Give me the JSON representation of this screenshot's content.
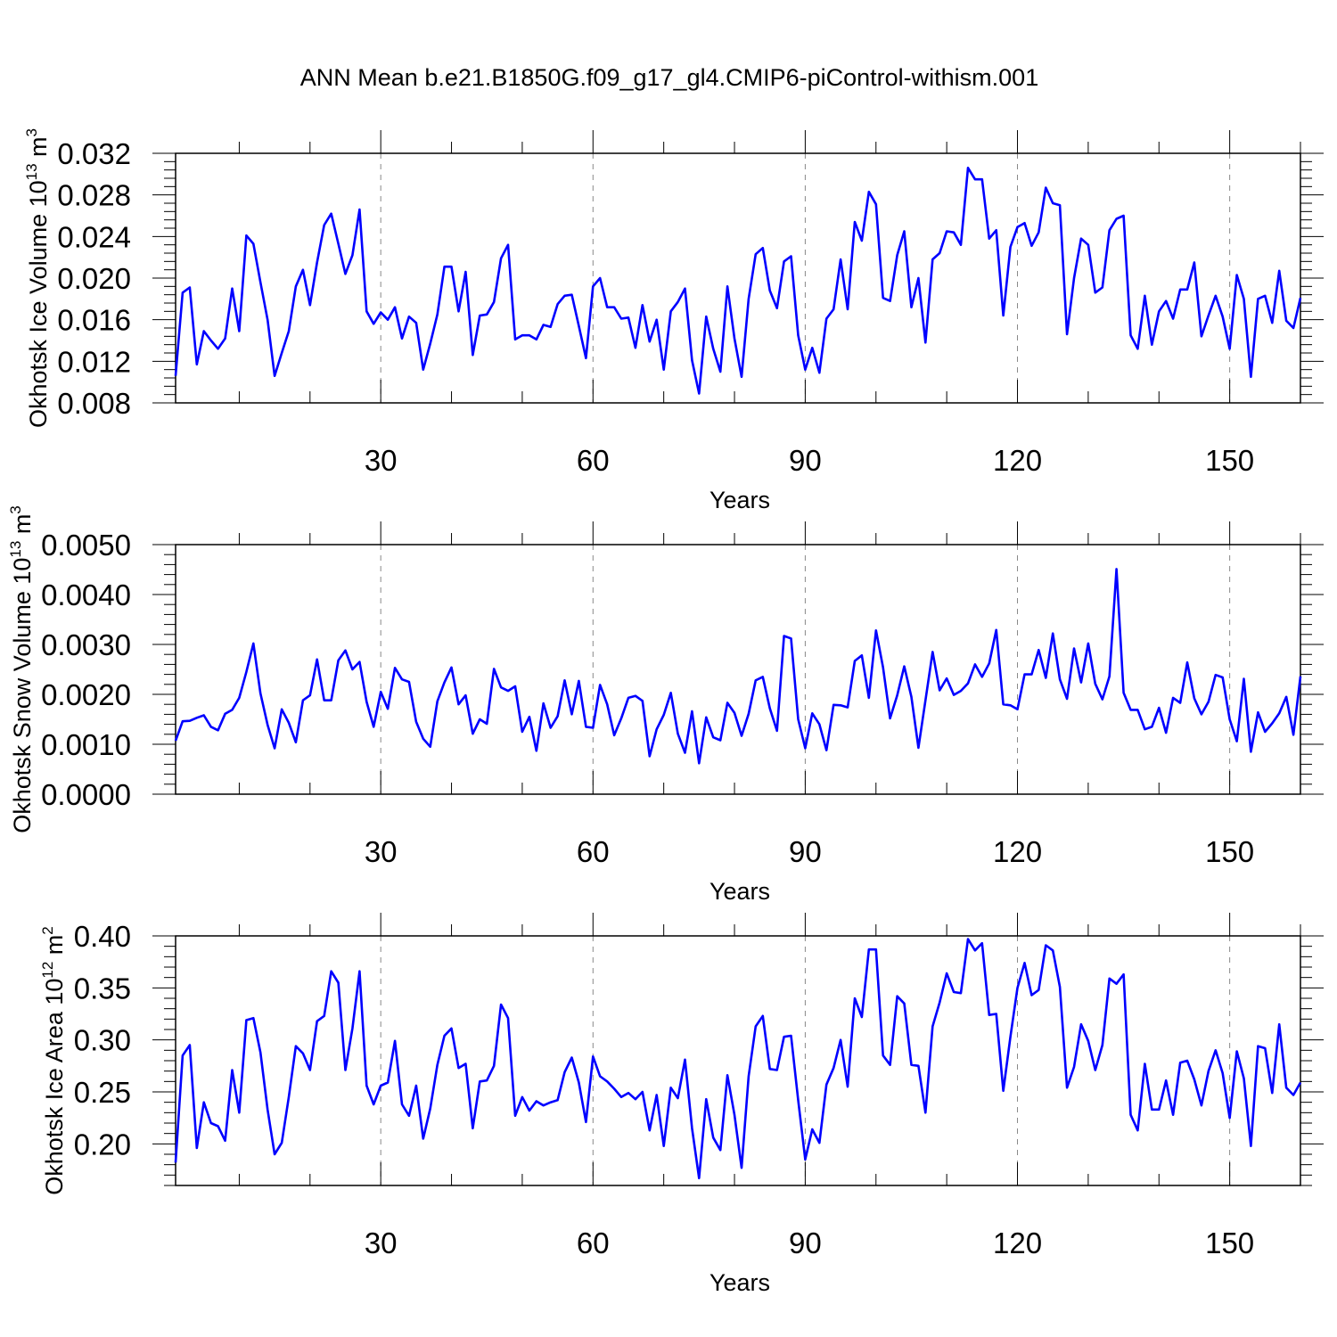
{
  "title": "ANN Mean b.e21.B1850G.f09_g17_gl4.CMIP6-piControl-withism.001",
  "colors": {
    "line": "#0000ff",
    "axis": "#000000",
    "grid": "#888888"
  },
  "chart_data": [
    {
      "type": "line",
      "name": "ice-volume",
      "ylabel_main": "Okhotsk Ice Volume 10",
      "ylabel_exp": "13",
      "ylabel_unit": " m",
      "ylabel_unit_exp": "3",
      "xlabel": "Years",
      "xlim": [
        1,
        160
      ],
      "xticks": [
        30,
        60,
        90,
        120,
        150
      ],
      "xtick_labels": [
        "30",
        "60",
        "90",
        "120",
        "150"
      ],
      "ylim": [
        0.008,
        0.032
      ],
      "yticks": [
        0.008,
        0.012,
        0.016,
        0.02,
        0.024,
        0.028,
        0.032
      ],
      "ytick_labels": [
        "0.008",
        "0.012",
        "0.016",
        "0.020",
        "0.024",
        "0.028",
        "0.032"
      ],
      "grid": "vertical dashed at major x ticks",
      "series": [
        {
          "name": "Okhotsk Ice Volume",
          "values": [
            0.0106,
            0.0186,
            0.0191,
            0.0117,
            0.0149,
            0.014,
            0.0132,
            0.0142,
            0.019,
            0.0149,
            0.0241,
            0.0233,
            0.0196,
            0.016,
            0.0106,
            0.0128,
            0.0149,
            0.0192,
            0.0208,
            0.0174,
            0.0215,
            0.0251,
            0.0262,
            0.0233,
            0.0204,
            0.0222,
            0.0266,
            0.0168,
            0.0156,
            0.0167,
            0.016,
            0.0172,
            0.0142,
            0.0163,
            0.0157,
            0.0112,
            0.0137,
            0.0165,
            0.0211,
            0.0211,
            0.0168,
            0.0206,
            0.0126,
            0.0164,
            0.0165,
            0.0177,
            0.0219,
            0.0232,
            0.0141,
            0.0145,
            0.0145,
            0.0141,
            0.0155,
            0.0153,
            0.0175,
            0.0183,
            0.0184,
            0.0154,
            0.0123,
            0.0192,
            0.02,
            0.0172,
            0.0172,
            0.0161,
            0.0162,
            0.0133,
            0.0174,
            0.0139,
            0.016,
            0.0112,
            0.0168,
            0.0177,
            0.019,
            0.0121,
            0.0089,
            0.0163,
            0.0132,
            0.011,
            0.0192,
            0.0142,
            0.0105,
            0.018,
            0.0223,
            0.0229,
            0.0188,
            0.0171,
            0.0216,
            0.0221,
            0.0145,
            0.0112,
            0.0133,
            0.0109,
            0.0161,
            0.017,
            0.0218,
            0.017,
            0.0254,
            0.0236,
            0.0283,
            0.0271,
            0.0181,
            0.0178,
            0.0222,
            0.0245,
            0.0172,
            0.02,
            0.0138,
            0.0218,
            0.0224,
            0.0245,
            0.0244,
            0.0232,
            0.0306,
            0.0295,
            0.0295,
            0.0238,
            0.0246,
            0.0164,
            0.023,
            0.0249,
            0.0253,
            0.0231,
            0.0244,
            0.0287,
            0.0272,
            0.027,
            0.0146,
            0.02,
            0.0238,
            0.0232,
            0.0186,
            0.0191,
            0.0246,
            0.0257,
            0.026,
            0.0145,
            0.0132,
            0.0183,
            0.0136,
            0.0168,
            0.0178,
            0.0161,
            0.0189,
            0.0189,
            0.0215,
            0.0144,
            0.0164,
            0.0183,
            0.0163,
            0.0132,
            0.0203,
            0.018,
            0.0105,
            0.018,
            0.0183,
            0.0157,
            0.0207,
            0.0159,
            0.0152,
            0.0181
          ]
        }
      ]
    },
    {
      "type": "line",
      "name": "snow-volume",
      "ylabel_main": "Okhotsk Snow Volume 10",
      "ylabel_exp": "13",
      "ylabel_unit": " m",
      "ylabel_unit_exp": "3",
      "xlabel": "Years",
      "xlim": [
        1,
        160
      ],
      "xticks": [
        30,
        60,
        90,
        120,
        150
      ],
      "xtick_labels": [
        "30",
        "60",
        "90",
        "120",
        "150"
      ],
      "ylim": [
        0.0,
        0.005
      ],
      "yticks": [
        0.0,
        0.001,
        0.002,
        0.003,
        0.004,
        0.005
      ],
      "ytick_labels": [
        "0.0000",
        "0.0010",
        "0.0020",
        "0.0030",
        "0.0040",
        "0.0050"
      ],
      "grid": "vertical dashed at major x ticks",
      "series": [
        {
          "name": "Okhotsk Snow Volume",
          "values": [
            0.00107,
            0.00146,
            0.00147,
            0.00153,
            0.00158,
            0.00135,
            0.00128,
            0.00161,
            0.00169,
            0.00193,
            0.00245,
            0.00302,
            0.00202,
            0.00139,
            0.00092,
            0.0017,
            0.00143,
            0.00104,
            0.00188,
            0.00198,
            0.0027,
            0.00188,
            0.00188,
            0.00268,
            0.00288,
            0.0025,
            0.00265,
            0.00185,
            0.00135,
            0.00205,
            0.00171,
            0.00253,
            0.0023,
            0.00225,
            0.00145,
            0.00111,
            0.00095,
            0.00186,
            0.00224,
            0.00254,
            0.0018,
            0.00198,
            0.00121,
            0.0015,
            0.00141,
            0.00251,
            0.00214,
            0.00207,
            0.00216,
            0.00125,
            0.00155,
            0.00087,
            0.00182,
            0.00133,
            0.00156,
            0.00228,
            0.0016,
            0.00227,
            0.00135,
            0.00133,
            0.00219,
            0.0018,
            0.00118,
            0.00152,
            0.00193,
            0.00197,
            0.00187,
            0.00076,
            0.0013,
            0.00159,
            0.00203,
            0.00121,
            0.00083,
            0.00166,
            0.00062,
            0.00154,
            0.00114,
            0.00108,
            0.00183,
            0.00163,
            0.00117,
            0.00161,
            0.00228,
            0.00235,
            0.00172,
            0.00127,
            0.00317,
            0.00312,
            0.0015,
            0.00092,
            0.00162,
            0.0014,
            0.00088,
            0.00179,
            0.00178,
            0.00174,
            0.00267,
            0.00278,
            0.00193,
            0.00328,
            0.00254,
            0.00152,
            0.00198,
            0.00256,
            0.00195,
            0.00093,
            0.00188,
            0.00285,
            0.00208,
            0.00232,
            0.00199,
            0.00207,
            0.00222,
            0.0026,
            0.00235,
            0.00262,
            0.00329,
            0.0018,
            0.00178,
            0.0017,
            0.0024,
            0.0024,
            0.00289,
            0.00233,
            0.00322,
            0.0023,
            0.00191,
            0.00292,
            0.00224,
            0.00302,
            0.00221,
            0.0019,
            0.00236,
            0.00451,
            0.00203,
            0.00169,
            0.00169,
            0.0013,
            0.00135,
            0.00173,
            0.00123,
            0.00193,
            0.00183,
            0.00264,
            0.00192,
            0.0016,
            0.00185,
            0.00239,
            0.00234,
            0.0015,
            0.00106,
            0.00231,
            0.00085,
            0.00164,
            0.00125,
            0.00142,
            0.00162,
            0.00195,
            0.00119,
            0.00236
          ]
        }
      ]
    },
    {
      "type": "line",
      "name": "ice-area",
      "ylabel_main": "Okhotsk Ice Area 10",
      "ylabel_exp": "12",
      "ylabel_unit": " m",
      "ylabel_unit_exp": "2",
      "xlabel": "Years",
      "xlim": [
        1,
        160
      ],
      "xticks": [
        30,
        60,
        90,
        120,
        150
      ],
      "xtick_labels": [
        "30",
        "60",
        "90",
        "120",
        "150"
      ],
      "ylim": [
        0.16,
        0.4
      ],
      "yticks": [
        0.2,
        0.25,
        0.3,
        0.35,
        0.4
      ],
      "ytick_labels": [
        "0.20",
        "0.25",
        "0.30",
        "0.35",
        "0.40"
      ],
      "grid": "vertical dashed at major x ticks",
      "series": [
        {
          "name": "Okhotsk Ice Area",
          "values": [
            0.182,
            0.285,
            0.295,
            0.196,
            0.24,
            0.22,
            0.217,
            0.203,
            0.271,
            0.23,
            0.319,
            0.321,
            0.288,
            0.233,
            0.19,
            0.201,
            0.245,
            0.294,
            0.287,
            0.271,
            0.318,
            0.323,
            0.366,
            0.355,
            0.271,
            0.311,
            0.366,
            0.256,
            0.238,
            0.256,
            0.259,
            0.299,
            0.238,
            0.227,
            0.256,
            0.205,
            0.234,
            0.276,
            0.304,
            0.311,
            0.273,
            0.277,
            0.215,
            0.26,
            0.261,
            0.275,
            0.334,
            0.321,
            0.227,
            0.245,
            0.232,
            0.241,
            0.237,
            0.24,
            0.242,
            0.269,
            0.283,
            0.259,
            0.221,
            0.284,
            0.265,
            0.26,
            0.253,
            0.245,
            0.249,
            0.243,
            0.25,
            0.213,
            0.247,
            0.198,
            0.254,
            0.244,
            0.281,
            0.215,
            0.167,
            0.243,
            0.206,
            0.194,
            0.266,
            0.228,
            0.177,
            0.265,
            0.313,
            0.323,
            0.272,
            0.271,
            0.303,
            0.304,
            0.242,
            0.185,
            0.214,
            0.201,
            0.257,
            0.273,
            0.3,
            0.255,
            0.34,
            0.322,
            0.387,
            0.387,
            0.285,
            0.276,
            0.342,
            0.335,
            0.276,
            0.275,
            0.23,
            0.313,
            0.336,
            0.364,
            0.346,
            0.345,
            0.397,
            0.386,
            0.393,
            0.324,
            0.325,
            0.251,
            0.303,
            0.35,
            0.374,
            0.343,
            0.348,
            0.391,
            0.386,
            0.351,
            0.254,
            0.274,
            0.315,
            0.299,
            0.271,
            0.295,
            0.359,
            0.354,
            0.363,
            0.228,
            0.213,
            0.277,
            0.233,
            0.233,
            0.261,
            0.228,
            0.278,
            0.28,
            0.262,
            0.237,
            0.27,
            0.29,
            0.268,
            0.225,
            0.289,
            0.263,
            0.198,
            0.294,
            0.292,
            0.249,
            0.315,
            0.254,
            0.247,
            0.259
          ]
        }
      ]
    }
  ]
}
